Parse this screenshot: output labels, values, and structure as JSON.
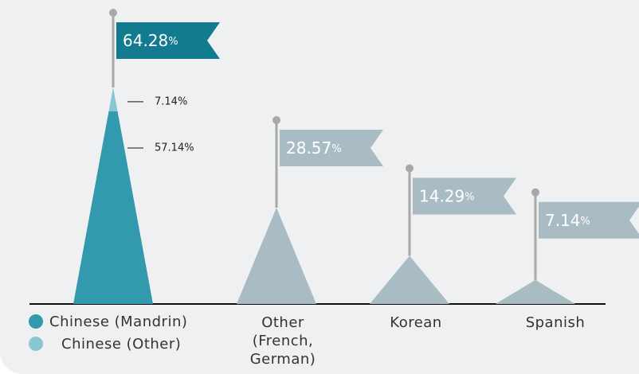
{
  "chart_data": {
    "type": "triangle",
    "categories": [
      null,
      "Other (French, German)",
      "Korean",
      "Spanish"
    ],
    "series": [
      {
        "name": "Chinese (Mandrin)",
        "color": "#3399ad",
        "values": [
          57.14,
          null,
          null,
          null
        ],
        "value_labels": [
          "57.14%",
          null,
          null,
          null
        ]
      },
      {
        "name": "Chinese (Other)",
        "color": "#88c6d1",
        "values": [
          7.14,
          null,
          null,
          null
        ],
        "value_labels": [
          "7.14%",
          null,
          null,
          null
        ]
      },
      {
        "color": "#a9bcc4",
        "values": [
          null,
          28.57,
          14.29,
          7.14
        ]
      }
    ],
    "totals": [
      64.28,
      28.57,
      14.29,
      7.14
    ],
    "total_labels": [
      "64.28%",
      "28.57%",
      "14.29%",
      "7.14%"
    ],
    "flag_colors": [
      "#137b8f",
      "#a9bcc4",
      "#a9bcc4",
      "#a9bcc4"
    ]
  }
}
